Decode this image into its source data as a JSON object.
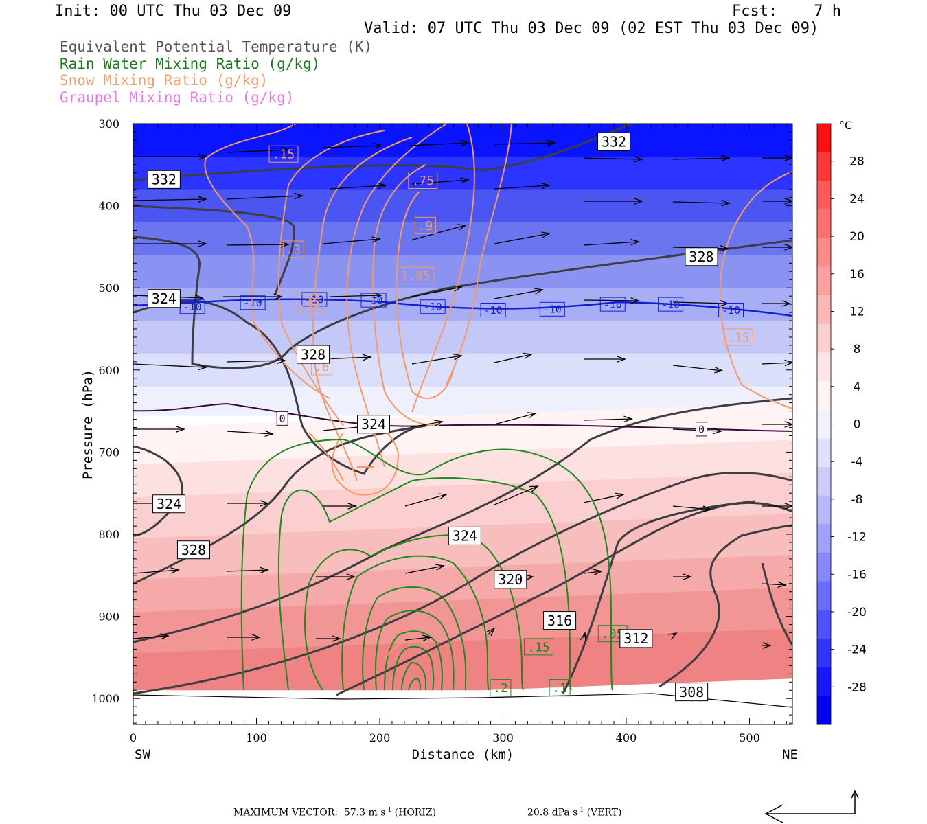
{
  "header": {
    "init": "Init: 00 UTC Thu 03 Dec 09",
    "fcst": "Fcst:    7 h",
    "valid": "Valid: 07 UTC Thu 03 Dec 09 (02 EST Thu 03 Dec 09)"
  },
  "legend": [
    {
      "label": "Equivalent Potential Temperature (K)",
      "color": "#555555"
    },
    {
      "label": "Rain Water Mixing Ratio (g/kg)",
      "color": "#1a7a1a"
    },
    {
      "label": "Snow Mixing Ratio (g/kg)",
      "color": "#f0a070"
    },
    {
      "label": "Graupel Mixing Ratio (g/kg)",
      "color": "#e878e8"
    }
  ],
  "footer": {
    "horiz_prefix": "MAXIMUM VECTOR:  57.3 m s",
    "horiz_suffix": " (HORIZ)",
    "vert_prefix": "20.8 dPa s",
    "vert_suffix": " (VERT)",
    "exponent": "-1"
  },
  "chart_data": {
    "type": "cross-section contour",
    "xlabel": "Distance (km)",
    "ylabel": "Pressure (hPa)",
    "x_ticks": [
      0,
      100,
      200,
      300,
      400,
      500
    ],
    "y_ticks": [
      300,
      400,
      500,
      600,
      700,
      800,
      900,
      1000
    ],
    "xlim": [
      0,
      535
    ],
    "ylim": [
      1030,
      300
    ],
    "x_end_labels": {
      "left": "SW",
      "right": "NE"
    },
    "colorbar": {
      "unit": "°C",
      "ticks": [
        28,
        24,
        20,
        16,
        12,
        8,
        4,
        0,
        -4,
        -8,
        -12,
        -16,
        -20,
        -24,
        -28
      ],
      "range": [
        -32,
        32
      ]
    },
    "temperature_field_shaded": true,
    "isotherm_labels": [
      {
        "text": "-10",
        "x": 48,
        "p": 523
      },
      {
        "text": "-10",
        "x": 97,
        "p": 518
      },
      {
        "text": "-10",
        "x": 147,
        "p": 514
      },
      {
        "text": "-10",
        "x": 195,
        "p": 515
      },
      {
        "text": "-10",
        "x": 243,
        "p": 523
      },
      {
        "text": "-10",
        "x": 292,
        "p": 527
      },
      {
        "text": "-10",
        "x": 340,
        "p": 526
      },
      {
        "text": "-10",
        "x": 389,
        "p": 520
      },
      {
        "text": "-10",
        "x": 436,
        "p": 520
      },
      {
        "text": "-10",
        "x": 485,
        "p": 527
      },
      {
        "text": "0",
        "x": 121,
        "p": 659
      },
      {
        "text": "0",
        "x": 461,
        "p": 672
      }
    ],
    "theta_e_labels": [
      {
        "text": "332",
        "x": 25,
        "p": 368
      },
      {
        "text": "332",
        "x": 390,
        "p": 322
      },
      {
        "text": "328",
        "x": 461,
        "p": 462
      },
      {
        "text": "324",
        "x": 25,
        "p": 513
      },
      {
        "text": "328",
        "x": 146,
        "p": 581
      },
      {
        "text": "324",
        "x": 195,
        "p": 666
      },
      {
        "text": "324",
        "x": 29,
        "p": 763
      },
      {
        "text": "328",
        "x": 49,
        "p": 819
      },
      {
        "text": "324",
        "x": 269,
        "p": 802
      },
      {
        "text": "320",
        "x": 306,
        "p": 855
      },
      {
        "text": "316",
        "x": 346,
        "p": 905
      },
      {
        "text": "312",
        "x": 408,
        "p": 927
      },
      {
        "text": "308",
        "x": 453,
        "p": 992
      }
    ],
    "snow_labels": [
      {
        "text": ".15",
        "x": 122,
        "p": 337
      },
      {
        "text": ".75",
        "x": 235,
        "p": 369
      },
      {
        "text": ".9",
        "x": 237,
        "p": 424
      },
      {
        "text": ".3",
        "x": 130,
        "p": 453
      },
      {
        "text": "1.05",
        "x": 229,
        "p": 485
      },
      {
        "text": ".45",
        "x": 143,
        "p": 518
      },
      {
        "text": ".15",
        "x": 491,
        "p": 560
      },
      {
        "text": ".6",
        "x": 153,
        "p": 596
      }
    ],
    "rain_labels": [
      {
        "text": ".15",
        "x": 329,
        "p": 937
      },
      {
        "text": ".05",
        "x": 389,
        "p": 921
      },
      {
        "text": ".2",
        "x": 298,
        "p": 987
      },
      {
        "text": ".1",
        "x": 346,
        "p": 987
      }
    ],
    "vector_scale": {
      "max_horiz": "57.3 m s-1",
      "max_vert": "20.8 dPa s-1"
    }
  }
}
